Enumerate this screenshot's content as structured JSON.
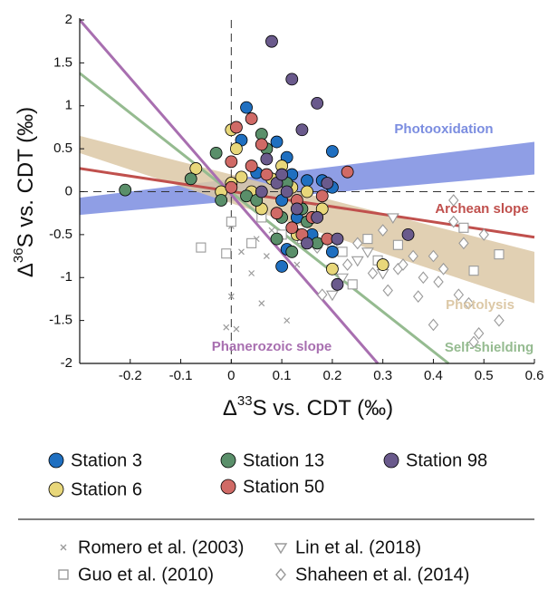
{
  "chart_data": {
    "type": "scatter",
    "x_label": {
      "prefix": "Δ",
      "sup": "33",
      "suffix": "S vs. CDT (‰)"
    },
    "y_label": {
      "prefix": "Δ",
      "sup": "36",
      "suffix": "S vs. CDT (‰)"
    },
    "xlim": [
      -0.3,
      0.6
    ],
    "ylim": [
      -2,
      2
    ],
    "xticks": [
      -0.2,
      -0.1,
      0,
      0.1,
      0.2,
      0.3,
      0.4,
      0.5,
      0.6
    ],
    "yticks": [
      -2,
      -1.5,
      -1,
      -0.5,
      0,
      0.5,
      1,
      1.5,
      2
    ],
    "bands": [
      {
        "name": "Photooxidation",
        "color": "#7b8de0",
        "x": [
          -0.3,
          0.6
        ],
        "y_upper": [
          -0.07,
          0.58
        ],
        "y_lower": [
          -0.27,
          0.2
        ]
      },
      {
        "name": "Photolysis",
        "color": "#dcc8a6",
        "x": [
          -0.3,
          0.6
        ],
        "y_upper": [
          0.65,
          -0.7
        ],
        "y_lower": [
          0.45,
          -1.3
        ]
      }
    ],
    "lines": [
      {
        "name": "Archean slope",
        "color": "#c0504d",
        "x": [
          -0.3,
          0.6
        ],
        "y": [
          0.27,
          -0.53
        ]
      },
      {
        "name": "Self-shielding",
        "color": "#95bb90",
        "x": [
          -0.3,
          0.43
        ],
        "y": [
          1.38,
          -2
        ]
      },
      {
        "name": "Phanerozoic slope",
        "color": "#a86fb0",
        "x": [
          -0.3,
          0.29
        ],
        "y": [
          2,
          -2
        ]
      }
    ],
    "series": [
      {
        "name": "Station 3",
        "color": "#1f6fc0",
        "marker": "circle",
        "x": [
          0.03,
          0.02,
          0.09,
          0.11,
          0.12,
          0.2,
          0.15,
          0.2,
          0.1,
          0.13,
          0.11,
          0.1,
          0.2,
          0.16,
          0.05,
          0.18
        ],
        "y": [
          0.98,
          0.6,
          0.58,
          0.4,
          0.2,
          0.47,
          0.13,
          0.05,
          -0.1,
          -0.3,
          -0.67,
          -0.87,
          -0.7,
          -0.5,
          0.22,
          0.13
        ]
      },
      {
        "name": "Station 6",
        "color": "#e8d77a",
        "marker": "circle",
        "x": [
          -0.07,
          0.0,
          0.01,
          0.02,
          0.04,
          0.0,
          -0.02,
          0.08,
          0.12,
          0.18,
          0.3,
          0.2,
          0.15,
          0.06,
          0.13,
          0.1
        ],
        "y": [
          0.27,
          0.72,
          0.5,
          0.17,
          0.0,
          0.1,
          0.0,
          0.15,
          0.05,
          -0.2,
          -0.85,
          -0.9,
          0.0,
          -0.2,
          -0.5,
          0.3
        ]
      },
      {
        "name": "Station 13",
        "color": "#5a8f6a",
        "marker": "circle",
        "x": [
          -0.21,
          -0.08,
          -0.03,
          0.06,
          0.07,
          -0.02,
          0.03,
          0.1,
          0.14,
          0.12,
          0.05,
          0.09,
          0.15,
          0.17,
          0.11
        ],
        "y": [
          0.02,
          0.15,
          0.45,
          0.67,
          0.5,
          -0.1,
          -0.05,
          -0.3,
          -0.2,
          -0.7,
          -0.1,
          -0.55,
          -0.35,
          -0.6,
          0.1
        ]
      },
      {
        "name": "Station 50",
        "color": "#d06a66",
        "marker": "circle",
        "x": [
          0.04,
          0.01,
          0.06,
          0.0,
          0.04,
          0.07,
          0.13,
          0.16,
          0.14,
          0.23,
          0.18,
          0.09,
          0.19,
          0.0,
          0.12
        ],
        "y": [
          0.85,
          0.75,
          0.55,
          0.35,
          0.3,
          0.2,
          -0.1,
          -0.3,
          -0.5,
          0.23,
          -0.05,
          -0.25,
          -0.55,
          0.05,
          -0.42
        ]
      },
      {
        "name": "Station 98",
        "color": "#6a5a8c",
        "marker": "circle",
        "x": [
          0.08,
          0.12,
          0.17,
          0.14,
          0.07,
          0.09,
          0.11,
          0.13,
          0.21,
          0.21,
          0.35,
          0.17,
          0.06,
          0.15,
          0.1,
          0.19
        ],
        "y": [
          1.75,
          1.31,
          1.03,
          0.72,
          0.38,
          0.1,
          0.0,
          -0.2,
          -0.55,
          -1.08,
          -0.5,
          -0.3,
          0.0,
          -0.6,
          0.2,
          0.1
        ]
      },
      {
        "name": "Romero et al. (2003)",
        "color": "#9a9a9a",
        "marker": "x",
        "x": [
          0.0,
          -0.01,
          0.01,
          0.06,
          0.02,
          0.05,
          0.08,
          0.11,
          0.04,
          0.13,
          0.0,
          0.07
        ],
        "y": [
          -1.22,
          -1.58,
          -1.6,
          -1.3,
          -0.7,
          -0.55,
          -0.45,
          -1.5,
          -0.95,
          -0.85,
          -0.4,
          -0.75
        ]
      },
      {
        "name": "Guo et al. (2010)",
        "color": "#9a9a9a",
        "marker": "square",
        "x": [
          -0.06,
          -0.01,
          0.0,
          0.04,
          0.06,
          0.1,
          0.14,
          0.2,
          0.22,
          0.24,
          0.27,
          0.33,
          0.29,
          0.46,
          0.48,
          0.53
        ],
        "y": [
          -0.65,
          -0.72,
          -0.35,
          -0.6,
          -0.3,
          -0.5,
          -0.55,
          -0.6,
          -0.7,
          -1.08,
          -0.55,
          -0.62,
          -0.8,
          -0.42,
          -0.92,
          -0.73
        ]
      },
      {
        "name": "Lin et al. (2018)",
        "color": "#9a9a9a",
        "marker": "triangle-down",
        "x": [
          0.2,
          0.22,
          0.25,
          0.27,
          0.2,
          0.32,
          0.18,
          0.3
        ],
        "y": [
          -0.9,
          -1.0,
          -0.8,
          -0.7,
          -1.2,
          -0.3,
          -0.2,
          -0.95
        ]
      },
      {
        "name": "Shaheen et al. (2014)",
        "color": "#9a9a9a",
        "marker": "diamond",
        "x": [
          0.17,
          0.18,
          0.23,
          0.25,
          0.28,
          0.3,
          0.31,
          0.33,
          0.34,
          0.36,
          0.38,
          0.4,
          0.42,
          0.44,
          0.44,
          0.46,
          0.47,
          0.48,
          0.49,
          0.53,
          0.37,
          0.4,
          0.45,
          0.41,
          0.5
        ],
        "y": [
          -0.65,
          -1.2,
          -0.85,
          -0.6,
          -0.95,
          -0.45,
          -1.15,
          -0.9,
          -0.85,
          -0.75,
          -1.0,
          -0.75,
          -0.9,
          -0.1,
          -0.35,
          -0.6,
          -1.3,
          -1.75,
          -1.65,
          -1.5,
          -1.22,
          -1.55,
          -1.2,
          -1.05,
          -0.5
        ]
      }
    ]
  }
}
